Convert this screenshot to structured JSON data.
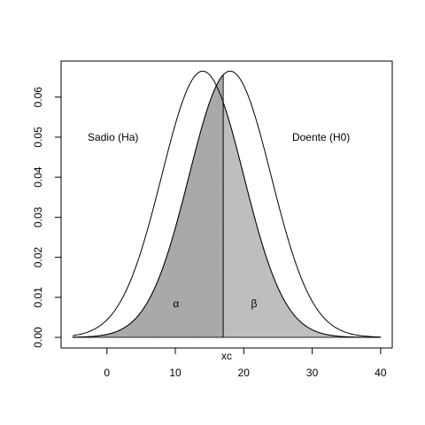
{
  "chart_data": {
    "type": "density-area",
    "xlabel": "xc",
    "xlim": [
      -6.7,
      41.7
    ],
    "ylim": [
      -0.00265,
      0.069
    ],
    "xticks": [
      0,
      10,
      20,
      30,
      40
    ],
    "yticks": [
      {
        "value": 0,
        "label": "0.00"
      },
      0.01,
      0.02,
      0.03,
      0.04,
      0.05,
      0.06
    ],
    "xrange": [
      -5,
      40
    ],
    "xc": 17,
    "series": [
      {
        "mean": 14,
        "sd": 6,
        "fill": "#bebebe"
      },
      {
        "mean": 18,
        "sd": 6,
        "fill": "#a9a9a9"
      }
    ],
    "annotations": [
      {
        "text": "Sadio (Ha)",
        "x": 0.9,
        "y": 0.05
      },
      {
        "text": "Doente (H0)",
        "x": 31.3,
        "y": 0.05
      },
      {
        "text": "α",
        "x": 10.1,
        "y": 0.0084
      },
      {
        "text": "β",
        "x": 21.5,
        "y": 0.0084
      }
    ]
  }
}
